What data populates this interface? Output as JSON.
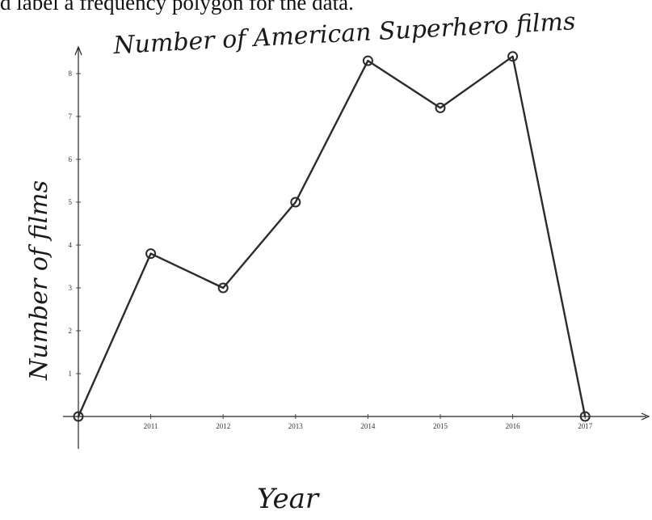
{
  "heading": "d label a frequency polygon for the data.",
  "chart_data": {
    "type": "line",
    "title": "Number of American Superhero films",
    "xlabel": "Year",
    "ylabel": "Number of films",
    "x": [
      2010,
      2011,
      2012,
      2013,
      2014,
      2015,
      2016,
      2017
    ],
    "x_tick_labels": [
      "2011",
      "2012",
      "2013",
      "2014",
      "2015",
      "2016",
      "2017"
    ],
    "y_tick_labels": [
      "1",
      "2",
      "3",
      "4",
      "5",
      "6",
      "7",
      "8"
    ],
    "series": [
      {
        "values": [
          0,
          3.8,
          3,
          5,
          8.3,
          7.2,
          8.4,
          0
        ]
      }
    ],
    "xlim": [
      2010,
      2017.8
    ],
    "ylim": [
      0,
      8.6
    ],
    "grid": false,
    "line_color": "#2b2b2b",
    "marker": "open-circle"
  }
}
